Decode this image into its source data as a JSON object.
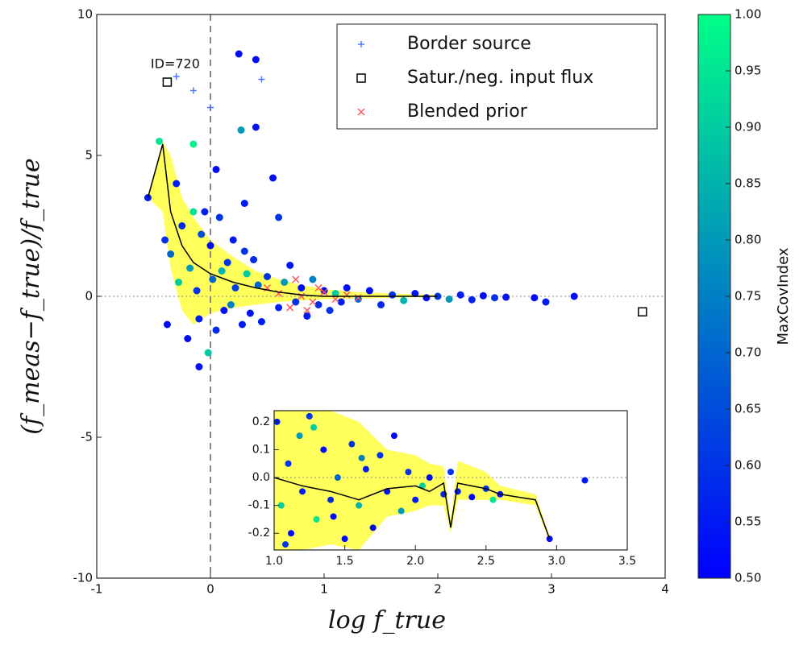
{
  "chart_data": {
    "type": "scatter",
    "xlabel": "log f_true",
    "ylabel": "(f_meas−f_true)/f_true",
    "xlim": [
      -1,
      4
    ],
    "ylim": [
      -10,
      10
    ],
    "xticks": [
      -1,
      0,
      1,
      2,
      3,
      4
    ],
    "yticks": [
      -10,
      -5,
      0,
      5,
      10
    ],
    "vlines": [
      0
    ],
    "hlines": [
      0
    ],
    "annotation": {
      "text": "ID=720",
      "x": -0.38,
      "y": 7.6
    },
    "cmap": [
      "#0000ff",
      "#00ff88"
    ],
    "colorbar": {
      "label": "MaxCovIndex",
      "clim": [
        0.5,
        1.0
      ],
      "ticks": [
        {
          "value": 0.5,
          "label": "0.50"
        },
        0.55,
        {
          "value": 0.6,
          "label": "0.60"
        },
        0.65,
        {
          "value": 0.7,
          "label": "0.70"
        },
        0.75,
        {
          "value": 0.8,
          "label": "0.80"
        },
        0.85,
        {
          "value": 0.9,
          "label": "0.90"
        },
        0.95,
        {
          "value": 1.0,
          "label": "1.00"
        }
      ]
    },
    "points": {
      "x": [
        -0.55,
        -0.45,
        -0.4,
        -0.38,
        -0.35,
        -0.3,
        -0.28,
        -0.25,
        -0.2,
        -0.18,
        -0.15,
        -0.12,
        -0.1,
        -0.08,
        -0.05,
        -0.02,
        0.0,
        0.02,
        0.05,
        0.08,
        0.1,
        0.12,
        0.15,
        0.18,
        0.2,
        0.22,
        0.25,
        0.28,
        0.3,
        0.32,
        0.35,
        0.38,
        0.4,
        0.42,
        0.45,
        0.5,
        0.55,
        0.6,
        0.65,
        0.7,
        0.75,
        0.8,
        0.85,
        0.9,
        0.95,
        1.0,
        1.05,
        1.1,
        1.15,
        1.2,
        1.3,
        1.4,
        1.5,
        1.6,
        1.7,
        1.8,
        1.9,
        2.0,
        2.1,
        2.2,
        2.3,
        2.4,
        2.5,
        2.6,
        2.85,
        2.95,
        3.2,
        0.27,
        0.4,
        -0.15,
        0.05,
        0.6,
        0.3,
        -0.1
      ],
      "y": [
        3.5,
        5.5,
        2.0,
        -1.0,
        1.5,
        4.0,
        0.5,
        2.5,
        -1.5,
        1.0,
        5.4,
        0.2,
        -0.8,
        2.2,
        3.0,
        -2.0,
        1.8,
        0.6,
        -1.2,
        2.8,
        0.9,
        -0.5,
        1.2,
        -0.3,
        2.0,
        0.3,
        8.6,
        -1.0,
        1.6,
        0.8,
        -0.6,
        1.3,
        8.4,
        0.4,
        -0.9,
        0.7,
        4.2,
        -0.4,
        0.5,
        1.1,
        -0.2,
        0.3,
        -0.7,
        0.6,
        -0.3,
        0.2,
        -0.5,
        0.1,
        -0.2,
        0.3,
        -0.1,
        0.2,
        -0.3,
        0.05,
        -0.15,
        0.1,
        -0.05,
        0.0,
        -0.1,
        0.05,
        -0.12,
        0.02,
        -0.05,
        -0.03,
        -0.05,
        -0.2,
        0.0,
        5.9,
        6.0,
        3.0,
        4.5,
        2.8,
        3.3,
        -2.5
      ],
      "c": [
        0.55,
        0.95,
        0.6,
        0.52,
        0.7,
        0.55,
        0.9,
        0.58,
        0.52,
        0.8,
        0.98,
        0.6,
        0.55,
        0.65,
        0.56,
        0.9,
        0.52,
        0.7,
        0.58,
        0.6,
        0.85,
        0.53,
        0.6,
        0.75,
        0.55,
        0.62,
        0.52,
        0.55,
        0.6,
        0.9,
        0.53,
        0.58,
        0.52,
        0.7,
        0.55,
        0.6,
        0.52,
        0.56,
        0.8,
        0.54,
        0.6,
        0.52,
        0.55,
        0.75,
        0.58,
        0.52,
        0.6,
        0.9,
        0.55,
        0.53,
        0.7,
        0.52,
        0.58,
        0.6,
        0.85,
        0.54,
        0.52,
        0.6,
        0.8,
        0.55,
        0.57,
        0.52,
        0.6,
        0.54,
        0.52,
        0.55,
        0.52,
        0.8,
        0.54,
        0.95,
        0.52,
        0.6,
        0.55,
        0.53
      ]
    },
    "series": [
      {
        "name": "Border source",
        "color": "#5577ff",
        "marker": "plus",
        "x": [
          0.45,
          -0.3,
          0.0,
          -0.15
        ],
        "y": [
          7.7,
          7.8,
          6.7,
          7.3
        ]
      },
      {
        "name": "Satur./neg. input flux",
        "color": "#000000",
        "marker": "square",
        "x": [
          -0.38,
          3.8
        ],
        "y": [
          7.6,
          -0.55
        ]
      },
      {
        "name": "Blended prior",
        "color": "#ff5555",
        "marker": "x",
        "x": [
          0.6,
          0.8,
          0.9,
          1.0,
          1.1,
          0.7,
          0.5,
          1.2,
          0.95,
          0.85,
          1.3,
          0.75
        ],
        "y": [
          0.1,
          0.0,
          -0.2,
          0.15,
          -0.1,
          -0.4,
          0.3,
          0.05,
          0.3,
          -0.5,
          -0.05,
          0.6
        ]
      }
    ],
    "median": {
      "color": "#000000",
      "x": [
        -0.55,
        -0.42,
        -0.35,
        -0.25,
        -0.15,
        0,
        0.2,
        0.4,
        0.6,
        0.8,
        1.0,
        1.3,
        1.6,
        2.0
      ],
      "y": [
        3.5,
        5.4,
        3.0,
        1.8,
        1.2,
        0.8,
        0.5,
        0.3,
        0.15,
        0.05,
        0.0,
        0.0,
        0.0,
        0.0
      ]
    },
    "band": {
      "color": "#ffff33",
      "x": [
        -0.55,
        -0.42,
        -0.35,
        -0.25,
        -0.15,
        0,
        0.2,
        0.4,
        0.6,
        0.8,
        1.0,
        1.3,
        1.6,
        2.0
      ],
      "lower": [
        3.5,
        3.0,
        1.0,
        -0.5,
        -1.0,
        -0.6,
        -0.4,
        -0.3,
        -0.2,
        -0.15,
        -0.1,
        -0.08,
        -0.05,
        -0.03
      ],
      "upper": [
        3.5,
        5.5,
        5.0,
        3.5,
        2.8,
        2.0,
        1.4,
        0.9,
        0.6,
        0.4,
        0.25,
        0.15,
        0.1,
        0.05
      ]
    },
    "inset": {
      "xlim": [
        1.0,
        3.5
      ],
      "ylim": [
        -0.26,
        0.24
      ],
      "xticks": [
        {
          "value": 1.0,
          "label": "1.0"
        },
        1.5,
        {
          "value": 2.0,
          "label": "2.0"
        },
        2.5,
        {
          "value": 3.0,
          "label": "3.0"
        },
        3.5
      ],
      "yticks": [
        -0.2,
        -0.1,
        {
          "value": 0.0,
          "label": "0.0"
        },
        0.1,
        0.2
      ],
      "hlines": [
        0
      ],
      "points": {
        "x": [
          1.02,
          1.05,
          1.1,
          1.12,
          1.18,
          1.2,
          1.25,
          1.3,
          1.35,
          1.4,
          1.45,
          1.5,
          1.55,
          1.6,
          1.65,
          1.7,
          1.75,
          1.8,
          1.85,
          1.9,
          1.95,
          2.0,
          2.05,
          2.1,
          2.2,
          2.25,
          2.3,
          2.4,
          2.5,
          2.55,
          2.6,
          2.95,
          3.2,
          1.08,
          1.28,
          1.42,
          1.62
        ],
        "y": [
          0.2,
          -0.1,
          0.05,
          -0.2,
          0.15,
          -0.05,
          0.22,
          -0.15,
          0.1,
          -0.08,
          0.0,
          -0.22,
          0.12,
          -0.1,
          0.03,
          -0.18,
          0.08,
          -0.05,
          0.15,
          -0.12,
          0.02,
          -0.08,
          -0.03,
          0.0,
          -0.06,
          0.02,
          -0.05,
          -0.07,
          -0.04,
          -0.08,
          -0.06,
          -0.22,
          -0.01,
          -0.24,
          0.18,
          -0.14,
          0.07
        ],
        "c": [
          0.55,
          0.9,
          0.6,
          0.52,
          0.8,
          0.55,
          0.6,
          0.95,
          0.53,
          0.58,
          0.7,
          0.52,
          0.6,
          0.85,
          0.55,
          0.52,
          0.6,
          0.54,
          0.52,
          0.8,
          0.6,
          0.55,
          0.9,
          0.52,
          0.58,
          0.6,
          0.55,
          0.52,
          0.6,
          0.95,
          0.54,
          0.52,
          0.55,
          0.6,
          0.9,
          0.52,
          0.75
        ]
      },
      "median": {
        "color": "#000000",
        "x": [
          1.0,
          1.2,
          1.4,
          1.6,
          1.8,
          2.0,
          2.1,
          2.2,
          2.25,
          2.3,
          2.5,
          2.6,
          2.85,
          2.95
        ],
        "y": [
          0.0,
          -0.03,
          -0.05,
          -0.08,
          -0.04,
          -0.03,
          -0.05,
          -0.02,
          -0.18,
          -0.02,
          -0.04,
          -0.06,
          -0.08,
          -0.22
        ]
      },
      "band": {
        "color": "#ffff33",
        "x": [
          1.0,
          1.2,
          1.4,
          1.6,
          1.8,
          2.0,
          2.1,
          2.2,
          2.25,
          2.3,
          2.5,
          2.6,
          2.85,
          2.95
        ],
        "lower": [
          -0.26,
          -0.26,
          -0.24,
          -0.26,
          -0.14,
          -0.12,
          -0.1,
          -0.1,
          -0.2,
          -0.08,
          -0.08,
          -0.08,
          -0.1,
          -0.23
        ],
        "upper": [
          0.24,
          0.24,
          0.24,
          0.2,
          0.1,
          0.08,
          0.05,
          0.04,
          -0.15,
          0.06,
          0.02,
          -0.03,
          -0.06,
          -0.21
        ]
      }
    }
  }
}
